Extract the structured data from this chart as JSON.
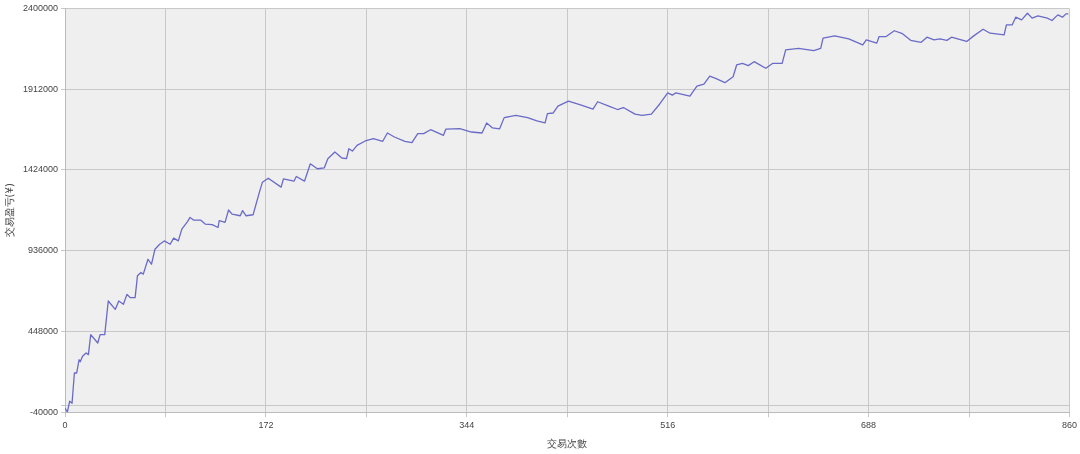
{
  "chart_data": {
    "type": "line",
    "xlabel": "交易次數",
    "ylabel": "交易盈亏(¥)",
    "x": [
      0,
      2,
      4,
      6,
      8,
      10,
      12,
      13,
      15,
      18,
      20,
      22,
      28,
      30,
      34,
      37,
      43,
      46,
      50,
      53,
      56,
      60,
      62,
      65,
      67,
      71,
      74,
      77,
      81,
      85,
      90,
      93,
      97,
      100,
      105,
      107,
      110,
      116,
      120,
      126,
      131,
      132,
      137,
      140,
      143,
      150,
      152,
      155,
      161,
      166,
      169,
      174,
      185,
      187,
      196,
      198,
      205,
      210,
      216,
      222,
      225,
      231,
      237,
      241,
      243,
      246,
      250,
      257,
      264,
      272,
      276,
      282,
      291,
      297,
      302,
      307,
      313,
      324,
      326,
      338,
      348,
      357,
      361,
      366,
      372,
      376,
      386,
      396,
      404,
      411,
      413,
      418,
      422,
      431,
      442,
      452,
      456,
      465,
      473,
      478,
      488,
      494,
      502,
      509,
      516,
      520,
      523,
      535,
      541,
      547,
      552,
      557,
      565,
      572,
      575,
      580,
      585,
      590,
      600,
      606,
      614,
      617,
      628,
      641,
      647,
      649,
      659,
      671,
      683,
      686,
      695,
      697,
      703,
      710,
      717,
      724,
      733,
      738,
      744,
      749,
      755,
      759,
      765,
      772,
      778,
      786,
      792,
      799,
      804,
      806,
      811,
      814,
      819,
      824,
      828,
      833,
      841,
      845,
      850,
      854,
      857,
      859
    ],
    "series": [
      {
        "color": "#6a6ac8",
        "values": [
          -16000,
          -38000,
          27000,
          14000,
          197000,
          197000,
          277000,
          265000,
          298000,
          318000,
          308000,
          429000,
          378000,
          429000,
          429000,
          632000,
          581000,
          632000,
          612000,
          672000,
          652000,
          652000,
          784000,
          804000,
          794000,
          884000,
          854000,
          945000,
          975000,
          995000,
          975000,
          1012000,
          995000,
          1066000,
          1113000,
          1137000,
          1121000,
          1121000,
          1097000,
          1093000,
          1076000,
          1117000,
          1107000,
          1182000,
          1157000,
          1147000,
          1178000,
          1147000,
          1153000,
          1279000,
          1350000,
          1374000,
          1320000,
          1370000,
          1356000,
          1384000,
          1356000,
          1461000,
          1431000,
          1437000,
          1491000,
          1532000,
          1496000,
          1492000,
          1552000,
          1538000,
          1572000,
          1599000,
          1613000,
          1597000,
          1647000,
          1623000,
          1597000,
          1589000,
          1643000,
          1643000,
          1667000,
          1633000,
          1670000,
          1673000,
          1653000,
          1647000,
          1708000,
          1678000,
          1672000,
          1740000,
          1754000,
          1740000,
          1720000,
          1708000,
          1764000,
          1768000,
          1809000,
          1840000,
          1815000,
          1791000,
          1836000,
          1811000,
          1789000,
          1801000,
          1761000,
          1754000,
          1761000,
          1821000,
          1890000,
          1876000,
          1890000,
          1870000,
          1931000,
          1943000,
          1991000,
          1977000,
          1951000,
          1987000,
          2058000,
          2068000,
          2054000,
          2078000,
          2038000,
          2068000,
          2068000,
          2149000,
          2159000,
          2145000,
          2159000,
          2220000,
          2234000,
          2216000,
          2180000,
          2210000,
          2190000,
          2230000,
          2230000,
          2265000,
          2247000,
          2207000,
          2195000,
          2226000,
          2210000,
          2216000,
          2207000,
          2226000,
          2214000,
          2200000,
          2234000,
          2274000,
          2250000,
          2244000,
          2240000,
          2301000,
          2301000,
          2347000,
          2331000,
          2371000,
          2341000,
          2355000,
          2341000,
          2327000,
          2361000,
          2347000,
          2367000,
          2367000
        ]
      }
    ],
    "xlim": [
      0,
      860
    ],
    "xticks": [
      0,
      {
        "value": 86,
        "label": null
      },
      172,
      {
        "value": 258,
        "label": null
      },
      344,
      {
        "value": 430,
        "label": null
      },
      516,
      {
        "value": 602,
        "label": null
      },
      688,
      {
        "value": 774,
        "label": null
      },
      860
    ],
    "ylim": [
      -40000,
      2400000
    ],
    "yticks": [
      -40000,
      {
        "value": 0,
        "label": null
      },
      448000,
      936000,
      1424000,
      1912000,
      2400000
    ],
    "grid": true,
    "marker": "none"
  }
}
